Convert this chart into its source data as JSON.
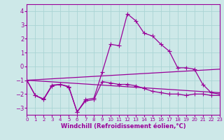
{
  "xlabel": "Windchill (Refroidissement éolien,°C)",
  "xlim": [
    0,
    23
  ],
  "ylim": [
    -3.5,
    4.5
  ],
  "yticks": [
    -3,
    -2,
    -1,
    0,
    1,
    2,
    3,
    4
  ],
  "xticks": [
    0,
    1,
    2,
    3,
    4,
    5,
    6,
    7,
    8,
    9,
    10,
    11,
    12,
    13,
    14,
    15,
    16,
    17,
    18,
    19,
    20,
    21,
    22,
    23
  ],
  "bg_color": "#cde8e8",
  "line_color": "#990099",
  "grid_color": "#aad4d4",
  "line1_x": [
    0,
    1,
    2,
    3,
    4,
    5,
    6,
    7,
    8,
    9,
    10,
    11,
    12,
    13,
    14,
    15,
    16,
    17,
    18,
    19,
    20,
    21,
    22,
    23
  ],
  "line1_y": [
    -1.0,
    -2.1,
    -2.4,
    -1.4,
    -1.3,
    -1.5,
    -3.3,
    -2.5,
    -2.4,
    -1.1,
    -1.2,
    -1.3,
    -1.3,
    -1.4,
    -1.6,
    -1.8,
    -1.9,
    -2.0,
    -2.0,
    -2.1,
    -2.0,
    -2.0,
    -2.1,
    -2.1
  ],
  "line2_x": [
    0,
    1,
    2,
    3,
    4,
    5,
    6,
    7,
    8,
    9,
    10,
    11,
    12,
    13,
    14,
    15,
    16,
    17,
    18,
    19,
    20,
    21,
    22,
    23
  ],
  "line2_y": [
    -1.0,
    -2.1,
    -2.35,
    -1.35,
    -1.3,
    -1.45,
    -3.3,
    -2.4,
    -2.3,
    -0.4,
    1.6,
    1.5,
    3.8,
    3.3,
    2.4,
    2.2,
    1.6,
    1.1,
    -0.1,
    -0.1,
    -0.2,
    -1.3,
    -1.9,
    -2.0
  ],
  "line3_x": [
    0,
    23
  ],
  "line3_y": [
    -1.0,
    -0.2
  ],
  "line4_x": [
    0,
    23
  ],
  "line4_y": [
    -1.0,
    -1.9
  ]
}
